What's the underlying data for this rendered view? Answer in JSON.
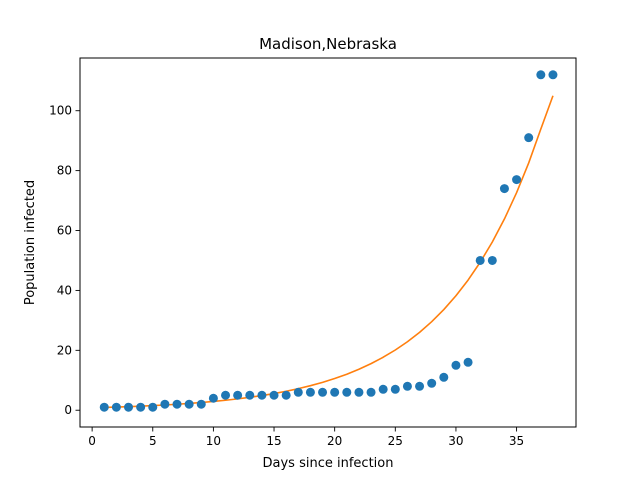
{
  "chart_data": {
    "type": "scatter",
    "title": "Madison,Nebraska",
    "xlabel": "Days since infection",
    "ylabel": "Population infected",
    "xlim": [
      -1,
      39.9
    ],
    "ylim": [
      -5.6,
      117.6
    ],
    "xticks": [
      0,
      5,
      10,
      15,
      20,
      25,
      30,
      35
    ],
    "yticks": [
      0,
      20,
      40,
      60,
      80,
      100
    ],
    "grid": false,
    "legend": "none",
    "series": [
      {
        "kind": "scatter",
        "color": "#1f77b4",
        "x": [
          1,
          2,
          3,
          4,
          5,
          6,
          7,
          8,
          9,
          10,
          11,
          12,
          13,
          14,
          15,
          16,
          17,
          18,
          19,
          20,
          21,
          22,
          23,
          24,
          25,
          26,
          27,
          28,
          29,
          30,
          31,
          32,
          33,
          34,
          35,
          36,
          37,
          38
        ],
        "y": [
          1,
          1,
          1,
          1,
          1,
          2,
          2,
          2,
          2,
          4,
          5,
          5,
          5,
          5,
          5,
          5,
          6,
          6,
          6,
          6,
          6,
          6,
          6,
          7,
          7,
          8,
          8,
          9,
          11,
          15,
          16,
          50,
          50,
          74,
          77,
          91,
          112,
          112
        ]
      },
      {
        "kind": "line",
        "color": "#ff7f0e",
        "x": [
          1,
          2,
          3,
          4,
          5,
          6,
          7,
          8,
          9,
          10,
          11,
          12,
          13,
          14,
          15,
          16,
          17,
          18,
          19,
          20,
          21,
          22,
          23,
          24,
          25,
          26,
          27,
          28,
          29,
          30,
          31,
          32,
          33,
          34,
          35,
          36,
          37,
          38
        ],
        "y": [
          0.92,
          1.05,
          1.19,
          1.36,
          1.54,
          1.75,
          2.0,
          2.27,
          2.58,
          2.93,
          3.33,
          3.79,
          4.31,
          4.9,
          5.57,
          6.33,
          7.2,
          8.19,
          9.31,
          10.58,
          12.03,
          13.68,
          15.56,
          17.69,
          20.11,
          22.87,
          26.0,
          29.56,
          33.61,
          38.22,
          43.45,
          49.41,
          56.17,
          63.87,
          72.62,
          82.57,
          93.88,
          105.0
        ]
      }
    ]
  }
}
